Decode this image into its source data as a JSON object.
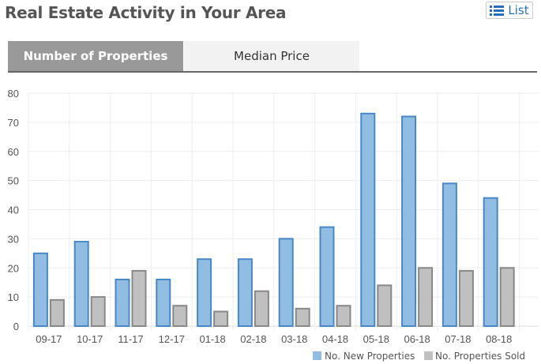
{
  "header": {
    "title": "Real Estate Activity in Your Area",
    "list_label": "List"
  },
  "tabs": [
    {
      "label": "Number of Properties",
      "active": true
    },
    {
      "label": "Median Price",
      "active": false
    }
  ],
  "colors": {
    "new": "#92bde3",
    "new_border": "#4a87c5",
    "sold": "#c0c0c0",
    "sold_border": "#888888"
  },
  "chart_data": {
    "type": "bar",
    "categories": [
      "09-17",
      "10-17",
      "11-17",
      "12-17",
      "01-18",
      "02-18",
      "03-18",
      "04-18",
      "05-18",
      "06-18",
      "07-18",
      "08-18"
    ],
    "series": [
      {
        "name": "No. New Properties",
        "values": [
          25,
          29,
          16,
          16,
          23,
          23,
          30,
          34,
          73,
          72,
          49,
          44
        ]
      },
      {
        "name": "No. Properties Sold",
        "values": [
          9,
          10,
          19,
          7,
          5,
          12,
          6,
          7,
          14,
          20,
          19,
          20
        ]
      }
    ],
    "ylim": [
      0,
      80
    ],
    "yticks": [
      "0",
      "10",
      "20",
      "30",
      "40",
      "50",
      "60",
      "70",
      "80"
    ],
    "grid": true,
    "legend": "bottom-right"
  }
}
